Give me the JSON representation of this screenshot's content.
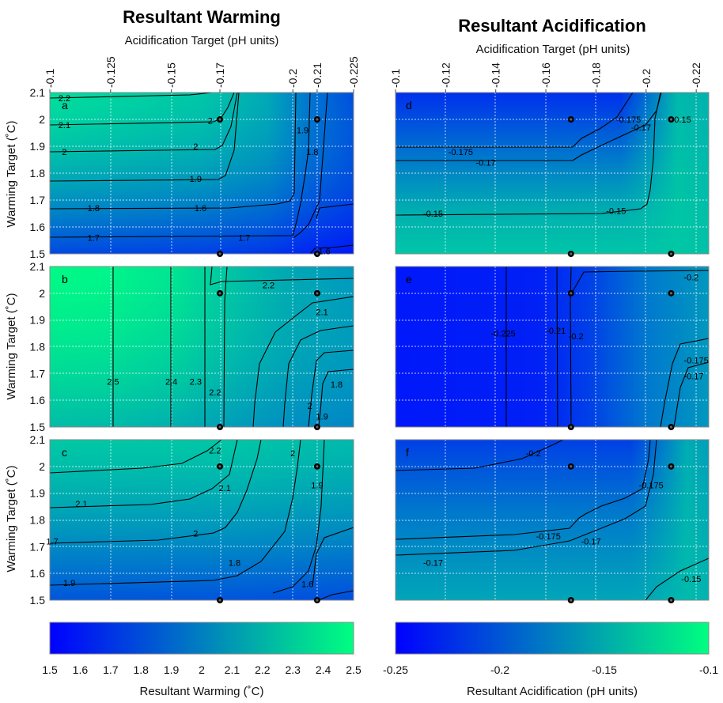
{
  "chart_data": [
    {
      "type": "heatmap",
      "title": "Resultant Warming",
      "xlabel": "Acidification Target (pH units)",
      "ylabel": "Warming Target (˚C)",
      "x_ticks": [
        "-0.1",
        "-0.125",
        "-0.15",
        "-0.17",
        "-0.2",
        "-0.21",
        "-0.225"
      ],
      "x_tick_values": [
        -0.1,
        -0.125,
        -0.15,
        -0.17,
        -0.2,
        -0.21,
        -0.225
      ],
      "xlim": [
        -0.1,
        -0.225
      ],
      "ylim": [
        1.5,
        2.1
      ],
      "y_ticks": [
        "1.5",
        "1.6",
        "1.7",
        "1.8",
        "1.9",
        "2",
        "2.1"
      ],
      "grid": true,
      "colorbar": {
        "label": "Resultant Warming (˚C)",
        "range": [
          1.5,
          2.5
        ],
        "ticks": [
          "1.5",
          "1.6",
          "1.7",
          "1.8",
          "1.9",
          "2",
          "2.1",
          "2.2",
          "2.3",
          "2.4",
          "2.5"
        ],
        "colors": [
          "#0000ff",
          "#00ff80"
        ]
      },
      "panels": [
        {
          "panel": "a",
          "contour_labels": [
            {
              "level": 2.2,
              "x": -0.106,
              "y": 2.08
            },
            {
              "level": 2.1,
              "x": -0.106,
              "y": 1.98
            },
            {
              "level": 2,
              "x": -0.106,
              "y": 1.88
            },
            {
              "level": 1.9,
              "x": -0.16,
              "y": 1.78
            },
            {
              "level": 1.8,
              "x": -0.118,
              "y": 1.67
            },
            {
              "level": 1.7,
              "x": -0.118,
              "y": 1.56
            },
            {
              "level": 1.6,
              "x": -0.162,
              "y": 1.67
            },
            {
              "level": 1.7,
              "x": -0.18,
              "y": 1.56
            },
            {
              "level": 2,
              "x": -0.16,
              "y": 1.9
            },
            {
              "level": 2,
              "x": -0.166,
              "y": 1.995
            },
            {
              "level": 1.9,
              "x": -0.204,
              "y": 1.96
            },
            {
              "level": 1.8,
              "x": -0.208,
              "y": 1.88
            },
            {
              "level": 1.6,
              "x": -0.213,
              "y": 1.51
            }
          ],
          "markers": [
            {
              "x": -0.17,
              "y": 2.0
            },
            {
              "x": -0.21,
              "y": 2.0
            },
            {
              "x": -0.17,
              "y": 1.5
            },
            {
              "x": -0.21,
              "y": 1.5
            }
          ]
        },
        {
          "panel": "b",
          "contour_labels": [
            {
              "level": 2.5,
              "x": -0.126,
              "y": 1.67
            },
            {
              "level": 2.4,
              "x": -0.15,
              "y": 1.67
            },
            {
              "level": 2.3,
              "x": -0.16,
              "y": 1.67
            },
            {
              "level": 2.2,
              "x": -0.168,
              "y": 1.63
            },
            {
              "level": 2.2,
              "x": -0.19,
              "y": 2.03
            },
            {
              "level": 2.1,
              "x": -0.212,
              "y": 1.93
            },
            {
              "level": 2,
              "x": -0.207,
              "y": 1.58
            },
            {
              "level": 1.9,
              "x": -0.212,
              "y": 1.54
            },
            {
              "level": 1.8,
              "x": -0.218,
              "y": 1.66
            }
          ],
          "markers": [
            {
              "x": -0.17,
              "y": 2.0
            },
            {
              "x": -0.21,
              "y": 2.0
            },
            {
              "x": -0.17,
              "y": 1.5
            },
            {
              "x": -0.21,
              "y": 1.5
            }
          ]
        },
        {
          "panel": "c",
          "contour_labels": [
            {
              "level": 2.2,
              "x": -0.168,
              "y": 2.06
            },
            {
              "level": 2.1,
              "x": -0.172,
              "y": 1.92
            },
            {
              "level": 2.1,
              "x": -0.113,
              "y": 1.86
            },
            {
              "level": 2,
              "x": -0.2,
              "y": 2.05
            },
            {
              "level": 2,
              "x": -0.16,
              "y": 1.75
            },
            {
              "level": 1.9,
              "x": -0.21,
              "y": 1.93
            },
            {
              "level": 1.9,
              "x": -0.108,
              "y": 1.565
            },
            {
              "level": 1.8,
              "x": -0.176,
              "y": 1.64
            },
            {
              "level": 1.7,
              "x": -0.101,
              "y": 1.72
            },
            {
              "level": 1.6,
              "x": -0.206,
              "y": 1.56
            }
          ],
          "markers": [
            {
              "x": -0.17,
              "y": 2.0
            },
            {
              "x": -0.21,
              "y": 2.0
            },
            {
              "x": -0.17,
              "y": 1.5
            },
            {
              "x": -0.21,
              "y": 1.5
            }
          ]
        }
      ]
    },
    {
      "type": "heatmap",
      "title": "Resultant Acidification",
      "xlabel": "Acidification Target (pH units)",
      "x_ticks": [
        "-0.1",
        "-0.12",
        "-0.14",
        "-0.16",
        "-0.18",
        "-0.2",
        "-0.22"
      ],
      "x_tick_values": [
        -0.1,
        -0.12,
        -0.14,
        -0.16,
        -0.18,
        -0.2,
        -0.22
      ],
      "xlim": [
        -0.1,
        -0.225
      ],
      "ylim": [
        1.5,
        2.1
      ],
      "grid": true,
      "colorbar": {
        "label": "Resultant Acidification (pH units)",
        "range": [
          -0.25,
          -0.1
        ],
        "ticks": [
          "-0.25",
          "-0.2",
          "-0.15",
          "-0.1"
        ],
        "colors": [
          "#0000ff",
          "#00ff80"
        ]
      },
      "panels": [
        {
          "panel": "d",
          "contour_labels": [
            {
              "level": -0.175,
              "x": -0.126,
              "y": 1.88
            },
            {
              "level": -0.175,
              "x": -0.193,
              "y": 2.0
            },
            {
              "level": -0.17,
              "x": -0.136,
              "y": 1.84
            },
            {
              "level": -0.17,
              "x": -0.198,
              "y": 1.97
            },
            {
              "level": -0.15,
              "x": -0.115,
              "y": 1.65
            },
            {
              "level": -0.15,
              "x": -0.188,
              "y": 1.66
            },
            {
              "level": -0.15,
              "x": -0.214,
              "y": 2.0
            }
          ],
          "markers": [
            {
              "x": -0.17,
              "y": 2.0
            },
            {
              "x": -0.21,
              "y": 2.0
            },
            {
              "x": -0.17,
              "y": 1.5
            },
            {
              "x": -0.21,
              "y": 1.5
            }
          ]
        },
        {
          "panel": "e",
          "contour_labels": [
            {
              "level": -0.225,
              "x": -0.143,
              "y": 1.85
            },
            {
              "level": -0.21,
              "x": -0.164,
              "y": 1.86
            },
            {
              "level": -0.2,
              "x": -0.172,
              "y": 1.84
            },
            {
              "level": -0.2,
              "x": -0.218,
              "y": 2.06
            },
            {
              "level": -0.175,
              "x": -0.22,
              "y": 1.75
            },
            {
              "level": -0.17,
              "x": -0.219,
              "y": 1.69
            }
          ],
          "markers": [
            {
              "x": -0.17,
              "y": 2.0
            },
            {
              "x": -0.21,
              "y": 2.0
            },
            {
              "x": -0.17,
              "y": 1.5
            },
            {
              "x": -0.21,
              "y": 1.5
            }
          ]
        },
        {
          "panel": "f",
          "contour_labels": [
            {
              "level": -0.2,
              "x": -0.155,
              "y": 2.05
            },
            {
              "level": -0.175,
              "x": -0.202,
              "y": 1.93
            },
            {
              "level": -0.175,
              "x": -0.161,
              "y": 1.74
            },
            {
              "level": -0.17,
              "x": -0.178,
              "y": 1.72
            },
            {
              "level": -0.17,
              "x": -0.115,
              "y": 1.64
            },
            {
              "level": -0.15,
              "x": -0.218,
              "y": 1.58
            }
          ],
          "markers": [
            {
              "x": -0.17,
              "y": 2.0
            },
            {
              "x": -0.21,
              "y": 2.0
            },
            {
              "x": -0.17,
              "y": 1.5
            },
            {
              "x": -0.21,
              "y": 1.5
            }
          ]
        }
      ]
    }
  ]
}
